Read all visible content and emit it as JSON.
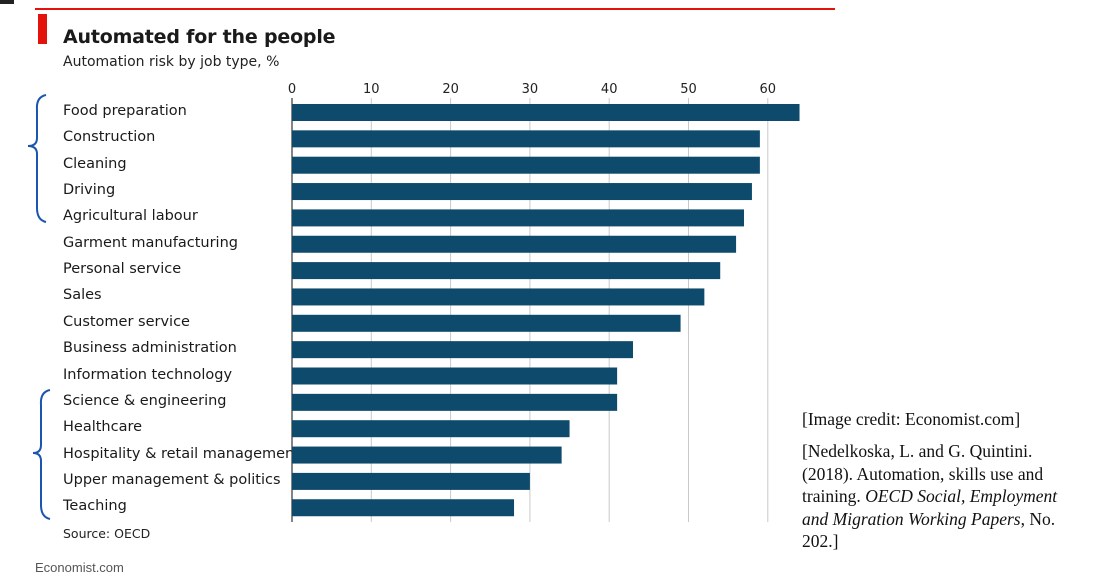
{
  "chart_data": {
    "type": "bar",
    "orientation": "horizontal",
    "title": "Automated for the people",
    "subtitle": "Automation risk by job type, %",
    "source": "Source: OECD",
    "categories": [
      "Food preparation",
      "Construction",
      "Cleaning",
      "Driving",
      "Agricultural labour",
      "Garment manufacturing",
      "Personal service",
      "Sales",
      "Customer service",
      "Business administration",
      "Information technology",
      "Science & engineering",
      "Healthcare",
      "Hospitality & retail management",
      "Upper management & politics",
      "Teaching"
    ],
    "values": [
      64,
      59,
      59,
      58,
      57,
      56,
      54,
      52,
      49,
      43,
      41,
      41,
      35,
      34,
      30,
      28
    ],
    "xticks": [
      "0",
      "10",
      "20",
      "30",
      "40",
      "50",
      "60"
    ],
    "xlim": [
      0,
      64
    ],
    "grid": true,
    "bar_color": "#0d4a6b"
  },
  "brand": "Economist.com",
  "accent_color": "#e3120b",
  "annotation_color": "#1a55b0",
  "credit": {
    "line1": "[Image credit: Economist.com]",
    "ref_a": "[Nedelkoska, L. and G. Quintini. (2018). Automation, skills use and training. ",
    "ref_journal": "OECD Social, Employment and Migration Working Papers",
    "ref_b": ", No. 202.]"
  }
}
